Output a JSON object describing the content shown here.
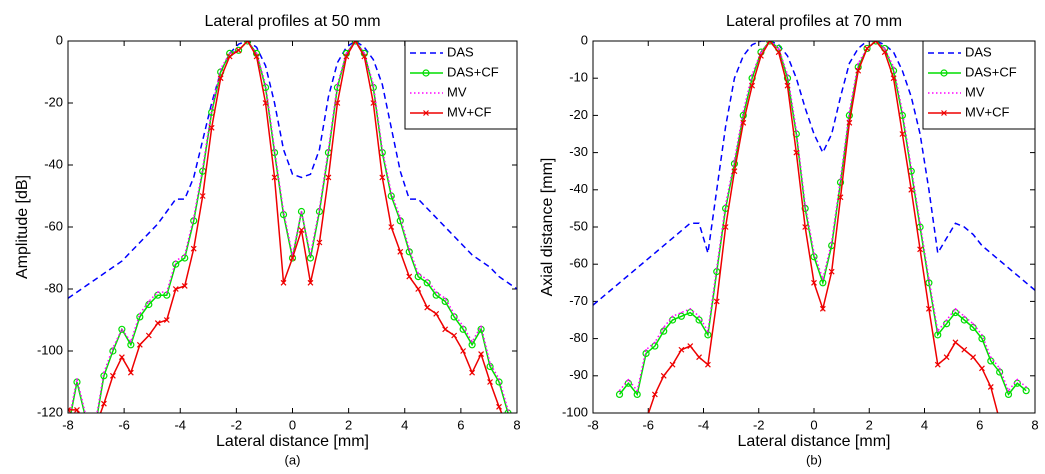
{
  "chart_data": [
    {
      "type": "line",
      "title": "Lateral profiles at 50 mm",
      "x_label": "Lateral distance [mm]",
      "y_label": "Amplitude [dB]",
      "caption": "(a)",
      "xlim": [
        -8,
        8
      ],
      "xticks": [
        -8,
        -6,
        -4,
        -2,
        0,
        2,
        4,
        6,
        8
      ],
      "ylim": [
        -120,
        0
      ],
      "yticks": [
        -120,
        -100,
        -80,
        -60,
        -40,
        -20,
        0
      ],
      "legend": "upper right",
      "x": [
        -8,
        -7.68,
        -7.36,
        -7.04,
        -6.72,
        -6.4,
        -6.08,
        -5.76,
        -5.44,
        -5.12,
        -4.8,
        -4.48,
        -4.16,
        -3.84,
        -3.52,
        -3.2,
        -2.88,
        -2.56,
        -2.24,
        -1.92,
        -1.6,
        -1.28,
        -0.96,
        -0.64,
        -0.32,
        0,
        0.32,
        0.64,
        0.96,
        1.28,
        1.6,
        1.92,
        2.24,
        2.56,
        2.88,
        3.2,
        3.52,
        3.84,
        4.16,
        4.48,
        4.8,
        5.12,
        5.44,
        5.76,
        6.08,
        6.4,
        6.72,
        7.04,
        7.36,
        7.68,
        8
      ],
      "series": [
        {
          "name": "DAS",
          "color": "#0000ff",
          "dash": "dashed",
          "marker": "none",
          "values": [
            -83,
            -81,
            -79,
            -77,
            -75,
            -73,
            -71,
            -68,
            -65,
            -62,
            -59,
            -55,
            -51,
            -51,
            -44,
            -32,
            -20,
            -10,
            -4,
            -1,
            0,
            -2,
            -8,
            -20,
            -35,
            -43,
            -44,
            -43,
            -35,
            -18,
            -7,
            -2,
            0,
            -2,
            -6,
            -14,
            -28,
            -42,
            -51,
            -51,
            -54,
            -57,
            -60,
            -63,
            -66,
            -69,
            -71,
            -73,
            -76,
            -78,
            -80
          ]
        },
        {
          "name": "DAS+CF",
          "color": "#00dd00",
          "dash": "solid",
          "marker": "circle",
          "values": [
            -125,
            -110,
            -122,
            -125,
            -108,
            -100,
            -93,
            -98,
            -89,
            -85,
            -82,
            -82,
            -72,
            -70,
            -58,
            -42,
            -23,
            -10,
            -4,
            -3,
            0,
            -4,
            -15,
            -36,
            -56,
            -70,
            -55,
            -70,
            -55,
            -36,
            -15,
            -4,
            0,
            -4,
            -15,
            -36,
            -50,
            -58,
            -68,
            -76,
            -78,
            -82,
            -84,
            -89,
            -93,
            -98,
            -93,
            -105,
            -110,
            -120,
            -125
          ]
        },
        {
          "name": "MV",
          "color": "#ff00ff",
          "dash": "dotted",
          "marker": "dot",
          "values": [
            -124,
            -109,
            -121,
            -124,
            -107,
            -99,
            -93,
            -97,
            -88,
            -84,
            -81,
            -81,
            -71,
            -69,
            -57,
            -41,
            -22,
            -9,
            -4,
            -3,
            0,
            -4,
            -14,
            -35,
            -55,
            -69,
            -55,
            -69,
            -54,
            -35,
            -14,
            -4,
            0,
            -4,
            -14,
            -35,
            -49,
            -57,
            -67,
            -75,
            -77,
            -81,
            -83,
            -88,
            -92,
            -97,
            -92,
            -104,
            -109,
            -119,
            -124
          ]
        },
        {
          "name": "MV+CF",
          "color": "#ee0000",
          "dash": "solid",
          "marker": "x",
          "values": [
            -119,
            -119,
            -125,
            -125,
            -117,
            -108,
            -102,
            -107,
            -98,
            -95,
            -91,
            -90,
            -80,
            -79,
            -67,
            -50,
            -28,
            -12,
            -5,
            -3,
            0,
            -5,
            -20,
            -44,
            -78,
            -70,
            -61,
            -78,
            -65,
            -44,
            -20,
            -5,
            0,
            -5,
            -20,
            -44,
            -60,
            -68,
            -76,
            -80,
            -86,
            -88,
            -93,
            -95,
            -100,
            -107,
            -101,
            -110,
            -118,
            -125,
            -125
          ]
        }
      ]
    },
    {
      "type": "line",
      "title": "Lateral profiles at 70 mm",
      "x_label": "Lateral distance [mm]",
      "y_label": "Axial distance [mm]",
      "caption": "(b)",
      "xlim": [
        -8,
        8
      ],
      "xticks": [
        -8,
        -6,
        -4,
        -2,
        0,
        2,
        4,
        6,
        8
      ],
      "ylim": [
        -100,
        0
      ],
      "yticks": [
        -100,
        -90,
        -80,
        -70,
        -60,
        -50,
        -40,
        -30,
        -20,
        -10,
        0
      ],
      "legend": "upper right",
      "x": [
        -8,
        -7.68,
        -7.36,
        -7.04,
        -6.72,
        -6.4,
        -6.08,
        -5.76,
        -5.44,
        -5.12,
        -4.8,
        -4.48,
        -4.16,
        -3.84,
        -3.52,
        -3.2,
        -2.88,
        -2.56,
        -2.24,
        -1.92,
        -1.6,
        -1.28,
        -0.96,
        -0.64,
        -0.32,
        0,
        0.32,
        0.64,
        0.96,
        1.28,
        1.6,
        1.92,
        2.24,
        2.56,
        2.88,
        3.2,
        3.52,
        3.84,
        4.16,
        4.48,
        4.8,
        5.12,
        5.44,
        5.76,
        6.08,
        6.4,
        6.72,
        7.04,
        7.36,
        7.68,
        8
      ],
      "series": [
        {
          "name": "DAS",
          "color": "#0000ff",
          "dash": "dashed",
          "marker": "none",
          "values": [
            -71,
            -69,
            -67,
            -65,
            -63,
            -61,
            -59,
            -57,
            -55,
            -53,
            -51,
            -49,
            -49,
            -57,
            -40,
            -23,
            -10,
            -4,
            -1,
            0,
            0,
            -1,
            -4,
            -10,
            -18,
            -25,
            -30,
            -25,
            -15,
            -6,
            -2,
            0,
            0,
            -1,
            -3,
            -8,
            -15,
            -25,
            -40,
            -57,
            -53,
            -49,
            -50,
            -52,
            -55,
            -57,
            -59,
            -61,
            -63,
            -65,
            -67
          ]
        },
        {
          "name": "DAS+CF",
          "color": "#00dd00",
          "dash": "solid",
          "marker": "circle",
          "values": [
            null,
            null,
            null,
            -95,
            -92,
            -95,
            -84,
            -82,
            -78,
            -75,
            -74,
            -73,
            -75,
            -79,
            -62,
            -45,
            -33,
            -20,
            -10,
            -3,
            0,
            -2,
            -10,
            -25,
            -45,
            -58,
            -65,
            -55,
            -38,
            -20,
            -7,
            -2,
            0,
            -2,
            -8,
            -20,
            -35,
            -50,
            -65,
            -79,
            -76,
            -73,
            -75,
            -77,
            -80,
            -86,
            -89,
            -95,
            -92,
            -94,
            null
          ]
        },
        {
          "name": "MV",
          "color": "#ff00ff",
          "dash": "dotted",
          "marker": "dot",
          "values": [
            null,
            null,
            null,
            -94,
            -91,
            -94,
            -83,
            -81,
            -77,
            -74,
            -73,
            -72,
            -74,
            -78,
            -61,
            -44,
            -32,
            -19,
            -9,
            -3,
            0,
            -2,
            -9,
            -24,
            -44,
            -57,
            -64,
            -54,
            -37,
            -19,
            -6,
            -2,
            0,
            -2,
            -7,
            -19,
            -34,
            -49,
            -64,
            -78,
            -75,
            -72,
            -74,
            -76,
            -79,
            -85,
            -88,
            -94,
            -91,
            -93,
            null
          ]
        },
        {
          "name": "MV+CF",
          "color": "#ee0000",
          "dash": "solid",
          "marker": "x",
          "values": [
            null,
            null,
            null,
            null,
            null,
            null,
            -102,
            -95,
            -90,
            -87,
            -83,
            -82,
            -85,
            -87,
            -70,
            -50,
            -35,
            -22,
            -12,
            -4,
            0,
            -3,
            -12,
            -30,
            -50,
            -65,
            -72,
            -62,
            -42,
            -22,
            -8,
            -2,
            0,
            -3,
            -10,
            -25,
            -40,
            -56,
            -72,
            -87,
            -85,
            -81,
            -83,
            -85,
            -88,
            -93,
            -102,
            null,
            null,
            null,
            null
          ]
        }
      ]
    }
  ]
}
